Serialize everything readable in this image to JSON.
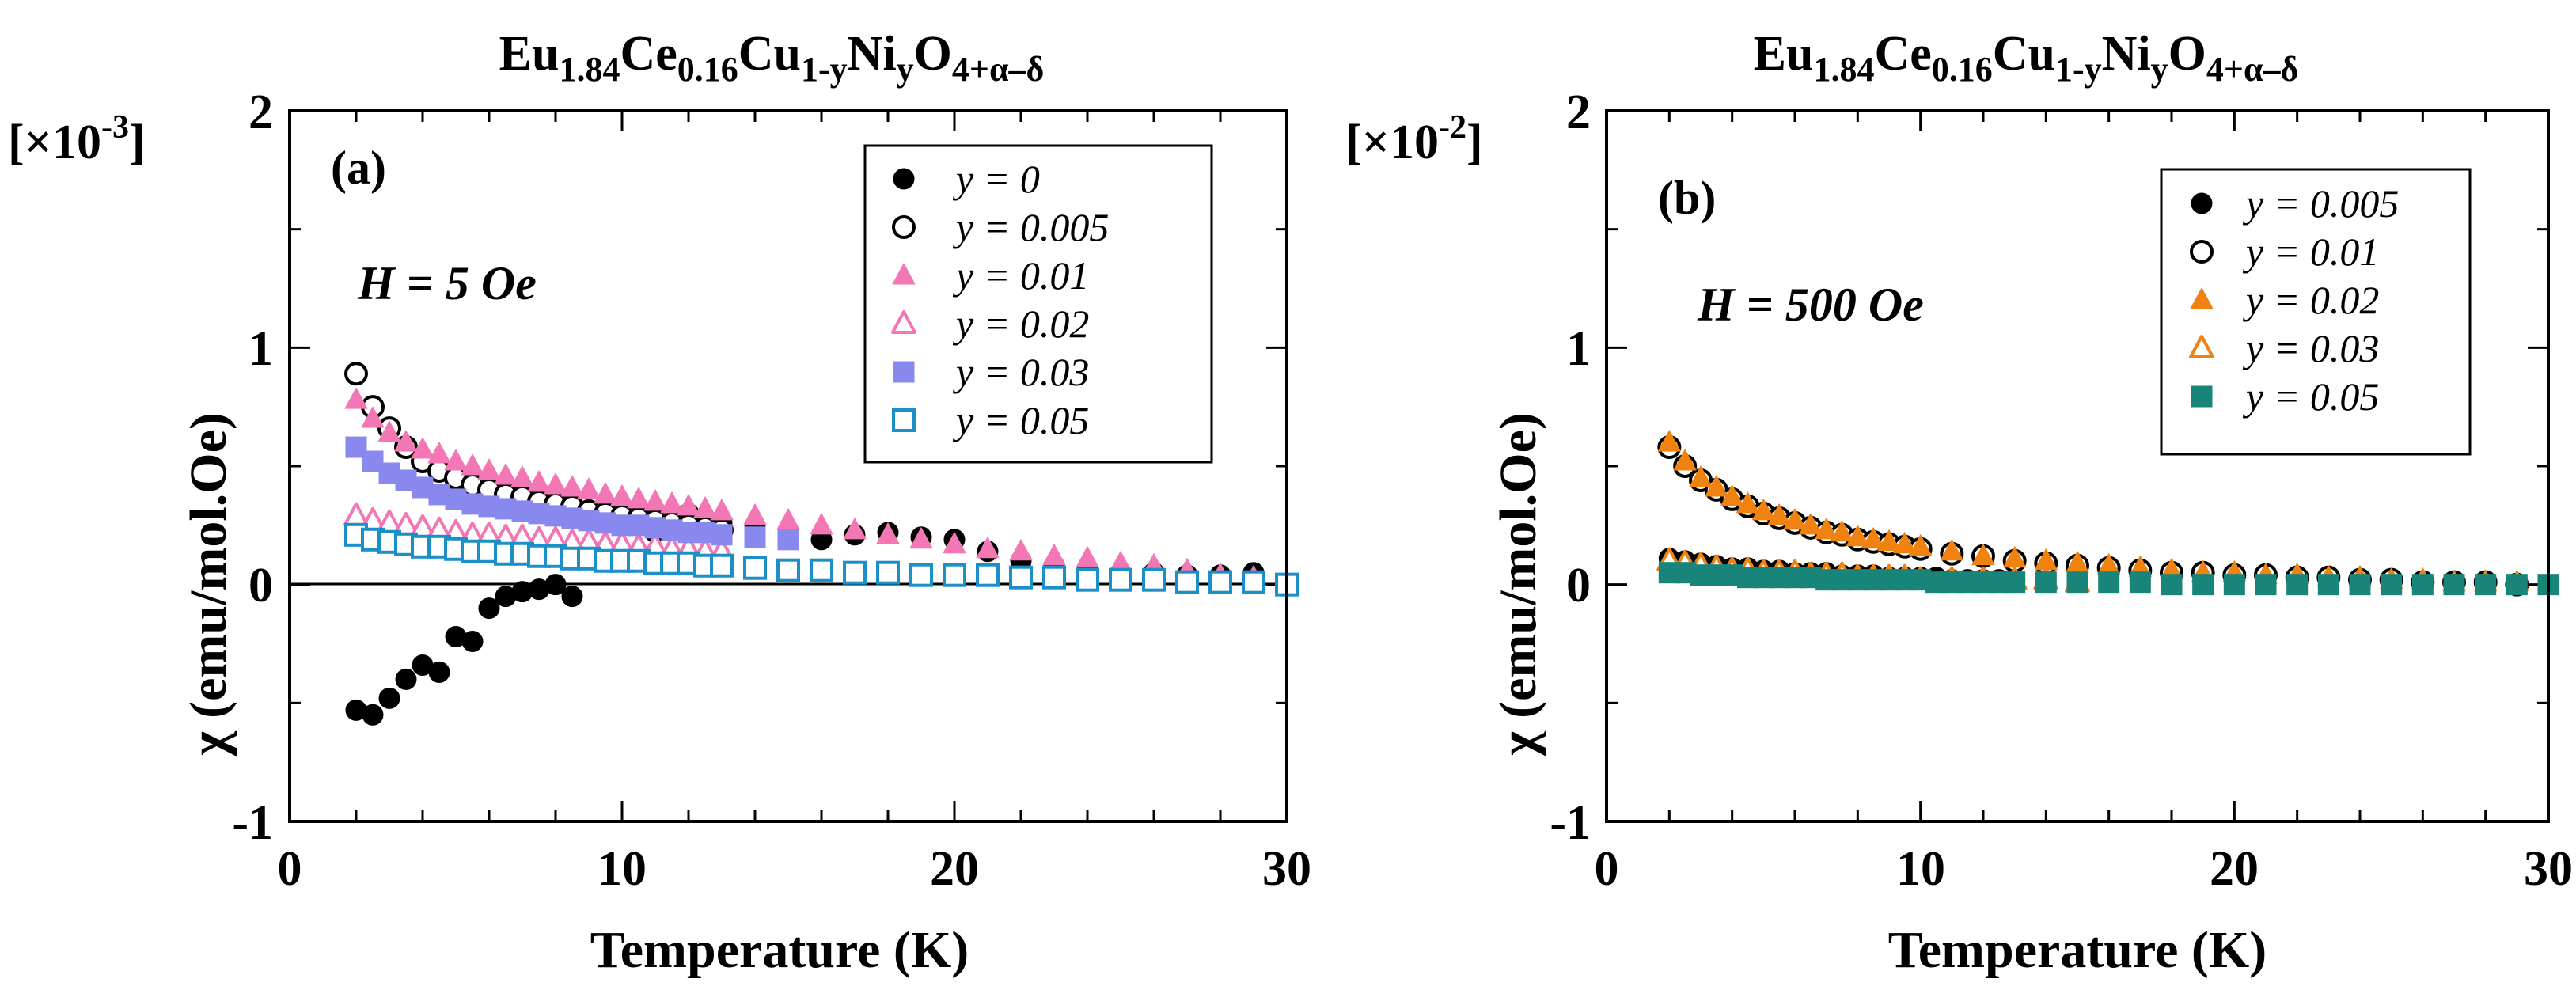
{
  "chart_data": [
    {
      "type": "scatter",
      "title_parts": {
        "a": "Eu",
        "b": "1.84",
        "c": "Ce",
        "d": "0.16",
        "e": "Cu",
        "f": "1-y",
        "g": "Ni",
        "h": "y",
        "i": "O",
        "j": "4+α–δ"
      },
      "panel_label": "(a)",
      "field_label": "H = 5 Oe",
      "xlabel": "Temperature (K)",
      "ylabel": "χ (emu/mol.Oe)",
      "multiplier": {
        "base": "[×10",
        "exp": "-3",
        "close": "]"
      },
      "xlim": [
        0,
        30
      ],
      "ylim": [
        -1,
        2
      ],
      "xticks": [
        "0",
        "10",
        "20",
        "30"
      ],
      "yticks": [
        "-1",
        "0",
        "1",
        "2"
      ],
      "zero_line": true,
      "legend_position": "top-right",
      "series": [
        {
          "name": "y = 0",
          "color": "#000000",
          "marker": "circle",
          "filled": true,
          "x": [
            2,
            2.5,
            3,
            3.5,
            4,
            4.5,
            5,
            5.5,
            6,
            6.5,
            7,
            7.5,
            8,
            8.5,
            9,
            10,
            11,
            12,
            13,
            14,
            15,
            16,
            17,
            18,
            19,
            20,
            21,
            22,
            23,
            24,
            25,
            26,
            27,
            28,
            29
          ],
          "y": [
            -0.53,
            -0.55,
            -0.48,
            -0.4,
            -0.34,
            -0.37,
            -0.22,
            -0.24,
            -0.1,
            -0.05,
            -0.03,
            -0.02,
            0.0,
            -0.05,
            0.12,
            0.1,
            0.22,
            0.3,
            0.26,
            0.24,
            0.2,
            0.19,
            0.21,
            0.22,
            0.2,
            0.19,
            0.14,
            0.1,
            0.08,
            0.06,
            0.05,
            0.05,
            0.04,
            0.04,
            0.05
          ]
        },
        {
          "name": "y = 0.005",
          "color": "#000000",
          "marker": "circle",
          "filled": false,
          "x": [
            2,
            2.5,
            3,
            3.5,
            4,
            4.5,
            5,
            5.5,
            6,
            6.5,
            7,
            7.5,
            8,
            8.5,
            9,
            9.5,
            10,
            10.5,
            11,
            11.5,
            12,
            12.5,
            13
          ],
          "y": [
            0.89,
            0.75,
            0.66,
            0.58,
            0.52,
            0.48,
            0.45,
            0.42,
            0.4,
            0.38,
            0.37,
            0.35,
            0.34,
            0.33,
            0.31,
            0.3,
            0.29,
            0.28,
            0.27,
            0.26,
            0.25,
            0.24,
            0.23
          ]
        },
        {
          "name": "y = 0.01",
          "color": "#f377b4",
          "marker": "triangle",
          "filled": true,
          "x": [
            2,
            2.5,
            3,
            3.5,
            4,
            4.5,
            5,
            5.5,
            6,
            6.5,
            7,
            7.5,
            8,
            8.5,
            9,
            9.5,
            10,
            10.5,
            11,
            11.5,
            12,
            12.5,
            13,
            14,
            15,
            16,
            17,
            18,
            19,
            20,
            21,
            22,
            23,
            24,
            25,
            26,
            27,
            28,
            29,
            30
          ],
          "y": [
            0.78,
            0.7,
            0.64,
            0.6,
            0.57,
            0.55,
            0.52,
            0.5,
            0.48,
            0.46,
            0.45,
            0.43,
            0.42,
            0.41,
            0.4,
            0.38,
            0.37,
            0.36,
            0.35,
            0.34,
            0.33,
            0.32,
            0.31,
            0.29,
            0.27,
            0.25,
            0.23,
            0.21,
            0.19,
            0.17,
            0.15,
            0.14,
            0.12,
            0.11,
            0.09,
            0.08,
            0.06,
            0.04,
            0.03,
            0.01
          ]
        },
        {
          "name": "y = 0.02",
          "color": "#f377b4",
          "marker": "triangle",
          "filled": false,
          "x": [
            2,
            2.5,
            3,
            3.5,
            4,
            4.5,
            5,
            5.5,
            6,
            6.5,
            7,
            7.5,
            8,
            8.5,
            9,
            9.5,
            10,
            10.5,
            11,
            11.5,
            12,
            12.5,
            13
          ],
          "y": [
            0.29,
            0.27,
            0.26,
            0.25,
            0.24,
            0.23,
            0.22,
            0.21,
            0.21,
            0.2,
            0.2,
            0.19,
            0.19,
            0.18,
            0.18,
            0.17,
            0.17,
            0.16,
            0.16,
            0.15,
            0.15,
            0.14,
            0.14
          ]
        },
        {
          "name": "y = 0.03",
          "color": "#8888ef",
          "marker": "square",
          "filled": true,
          "x": [
            2,
            2.5,
            3,
            3.5,
            4,
            4.5,
            5,
            5.5,
            6,
            6.5,
            7,
            7.5,
            8,
            8.5,
            9,
            9.5,
            10,
            10.5,
            11,
            11.5,
            12,
            12.5,
            13,
            14,
            15
          ],
          "y": [
            0.58,
            0.52,
            0.47,
            0.44,
            0.41,
            0.38,
            0.36,
            0.34,
            0.33,
            0.32,
            0.31,
            0.3,
            0.29,
            0.28,
            0.27,
            0.26,
            0.25,
            0.25,
            0.24,
            0.23,
            0.22,
            0.22,
            0.21,
            0.2,
            0.19
          ]
        },
        {
          "name": "y = 0.05",
          "color": "#1a8fc8",
          "marker": "square",
          "filled": false,
          "x": [
            2,
            2.5,
            3,
            3.5,
            4,
            4.5,
            5,
            5.5,
            6,
            6.5,
            7,
            7.5,
            8,
            8.5,
            9,
            9.5,
            10,
            10.5,
            11,
            11.5,
            12,
            12.5,
            13,
            14,
            15,
            16,
            17,
            18,
            19,
            20,
            21,
            22,
            23,
            24,
            25,
            26,
            27,
            28,
            29,
            30
          ],
          "y": [
            0.21,
            0.19,
            0.18,
            0.17,
            0.16,
            0.16,
            0.15,
            0.14,
            0.14,
            0.13,
            0.13,
            0.12,
            0.12,
            0.11,
            0.11,
            0.1,
            0.1,
            0.1,
            0.09,
            0.09,
            0.09,
            0.08,
            0.08,
            0.07,
            0.06,
            0.06,
            0.05,
            0.05,
            0.04,
            0.04,
            0.04,
            0.03,
            0.03,
            0.02,
            0.02,
            0.02,
            0.01,
            0.01,
            0.01,
            0.0
          ]
        }
      ]
    },
    {
      "type": "scatter",
      "title_parts": {
        "a": "Eu",
        "b": "1.84",
        "c": "Ce",
        "d": "0.16",
        "e": "Cu",
        "f": "1-y",
        "g": "Ni",
        "h": "y",
        "i": "O",
        "j": "4+α–δ"
      },
      "panel_label": "(b)",
      "field_label": "H = 500 Oe",
      "xlabel": "Temperature (K)",
      "ylabel": "χ (emu/mol.Oe)",
      "multiplier": {
        "base": "[×10",
        "exp": "-2",
        "close": "]"
      },
      "xlim": [
        0,
        30
      ],
      "ylim": [
        -1,
        2
      ],
      "xticks": [
        "0",
        "10",
        "20",
        "30"
      ],
      "yticks": [
        "-1",
        "0",
        "1",
        "2"
      ],
      "zero_line": false,
      "legend_position": "top-right",
      "series": [
        {
          "name": "y = 0.005",
          "color": "#000000",
          "marker": "circle",
          "filled": true,
          "x": [
            2,
            2.5,
            3,
            3.5,
            4,
            4.5,
            5,
            5.5,
            6,
            6.5,
            7,
            7.5,
            8,
            8.5,
            9,
            9.5,
            10,
            10.5,
            11,
            11.5,
            12,
            12.5,
            13
          ],
          "y": [
            0.11,
            0.1,
            0.09,
            0.08,
            0.07,
            0.07,
            0.06,
            0.06,
            0.05,
            0.05,
            0.05,
            0.04,
            0.04,
            0.04,
            0.03,
            0.03,
            0.03,
            0.03,
            0.02,
            0.02,
            0.02,
            0.02,
            0.02
          ]
        },
        {
          "name": "y = 0.01",
          "color": "#000000",
          "marker": "circle",
          "filled": false,
          "x": [
            2,
            2.5,
            3,
            3.5,
            4,
            4.5,
            5,
            5.5,
            6,
            6.5,
            7,
            7.5,
            8,
            8.5,
            9,
            9.5,
            10,
            11,
            12,
            13,
            14,
            15,
            16,
            17,
            18,
            19,
            20,
            21,
            22,
            23,
            24,
            25,
            26,
            27,
            28,
            29
          ],
          "y": [
            0.58,
            0.5,
            0.44,
            0.4,
            0.36,
            0.33,
            0.3,
            0.28,
            0.26,
            0.24,
            0.22,
            0.21,
            0.19,
            0.18,
            0.17,
            0.16,
            0.15,
            0.13,
            0.12,
            0.1,
            0.09,
            0.08,
            0.07,
            0.06,
            0.05,
            0.05,
            0.04,
            0.04,
            0.03,
            0.03,
            0.02,
            0.02,
            0.01,
            0.01,
            0.01,
            0.0
          ]
        },
        {
          "name": "y = 0.02",
          "color": "#f0820f",
          "marker": "triangle",
          "filled": true,
          "x": [
            2,
            2.5,
            3,
            3.5,
            4,
            4.5,
            5,
            5.5,
            6,
            6.5,
            7,
            7.5,
            8,
            8.5,
            9,
            9.5,
            10,
            11,
            12,
            13,
            14,
            15,
            16,
            17,
            18,
            19,
            20,
            21,
            22,
            23,
            24,
            25,
            26,
            27,
            28,
            29
          ],
          "y": [
            0.6,
            0.52,
            0.45,
            0.41,
            0.37,
            0.34,
            0.31,
            0.29,
            0.27,
            0.25,
            0.23,
            0.22,
            0.2,
            0.19,
            0.18,
            0.17,
            0.16,
            0.14,
            0.12,
            0.11,
            0.1,
            0.09,
            0.08,
            0.07,
            0.06,
            0.05,
            0.05,
            0.04,
            0.04,
            0.03,
            0.03,
            0.02,
            0.02,
            0.01,
            0.01,
            0.01
          ]
        },
        {
          "name": "y = 0.03",
          "color": "#f0820f",
          "marker": "triangle",
          "filled": false,
          "x": [
            2,
            2.5,
            3,
            3.5,
            4,
            4.5,
            5,
            5.5,
            6,
            6.5,
            7,
            7.5,
            8,
            8.5,
            9,
            9.5,
            10,
            11,
            12,
            13,
            14,
            15
          ],
          "y": [
            0.1,
            0.09,
            0.08,
            0.07,
            0.06,
            0.06,
            0.05,
            0.05,
            0.05,
            0.04,
            0.04,
            0.04,
            0.03,
            0.03,
            0.03,
            0.03,
            0.02,
            0.02,
            0.02,
            0.02,
            0.02,
            0.01
          ]
        },
        {
          "name": "y = 0.05",
          "color": "#19857a",
          "marker": "square",
          "filled": true,
          "x": [
            2,
            2.5,
            3,
            3.5,
            4,
            4.5,
            5,
            5.5,
            6,
            6.5,
            7,
            7.5,
            8,
            8.5,
            9,
            9.5,
            10,
            10.5,
            11,
            11.5,
            12,
            12.5,
            13,
            14,
            15,
            16,
            17,
            18,
            19,
            20,
            21,
            22,
            23,
            24,
            25,
            26,
            27,
            28,
            29,
            30
          ],
          "y": [
            0.05,
            0.05,
            0.04,
            0.04,
            0.04,
            0.03,
            0.03,
            0.03,
            0.03,
            0.03,
            0.02,
            0.02,
            0.02,
            0.02,
            0.02,
            0.02,
            0.02,
            0.01,
            0.01,
            0.01,
            0.01,
            0.01,
            0.01,
            0.01,
            0.01,
            0.01,
            0.01,
            0.0,
            0.0,
            0.0,
            0.0,
            0.0,
            0.0,
            0.0,
            0.0,
            0.0,
            0.0,
            0.0,
            0.0,
            0.0
          ]
        }
      ]
    }
  ]
}
